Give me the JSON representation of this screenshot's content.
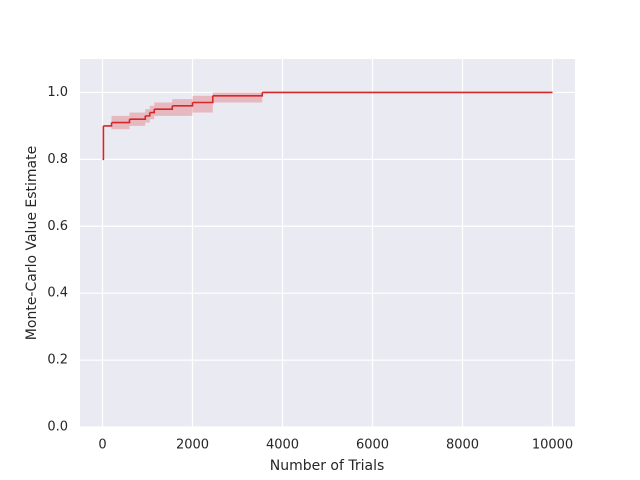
{
  "chart_data": {
    "type": "step",
    "x_label": "Number of Trials",
    "y_label": "Monte-Carlo Value Estimate",
    "x": [
      0,
      20,
      200,
      600,
      950,
      1050,
      1150,
      1550,
      2000,
      2450,
      3550,
      10000
    ],
    "values": [
      0.8,
      0.9,
      0.91,
      0.92,
      0.93,
      0.94,
      0.95,
      0.96,
      0.97,
      0.99,
      1.0,
      1.0
    ],
    "lower": [
      0.8,
      0.9,
      0.89,
      0.9,
      0.91,
      0.92,
      0.93,
      0.93,
      0.94,
      0.97,
      1.0,
      1.0
    ],
    "upper": [
      0.8,
      0.9,
      0.93,
      0.94,
      0.95,
      0.96,
      0.97,
      0.98,
      0.99,
      1.0,
      1.0,
      1.0
    ],
    "color": "#d62728",
    "band_opacity": 0.25,
    "background": "#eaeaf2",
    "grid": true,
    "xlim": [
      -500,
      10500
    ],
    "ylim": [
      0,
      1.1
    ],
    "xticks": [
      0,
      2000,
      4000,
      6000,
      8000,
      10000
    ],
    "yticks": [
      {
        "value": 0,
        "label": "0.0"
      },
      0.2,
      0.4,
      0.6,
      0.8,
      {
        "value": 1,
        "label": "1.0"
      }
    ]
  }
}
